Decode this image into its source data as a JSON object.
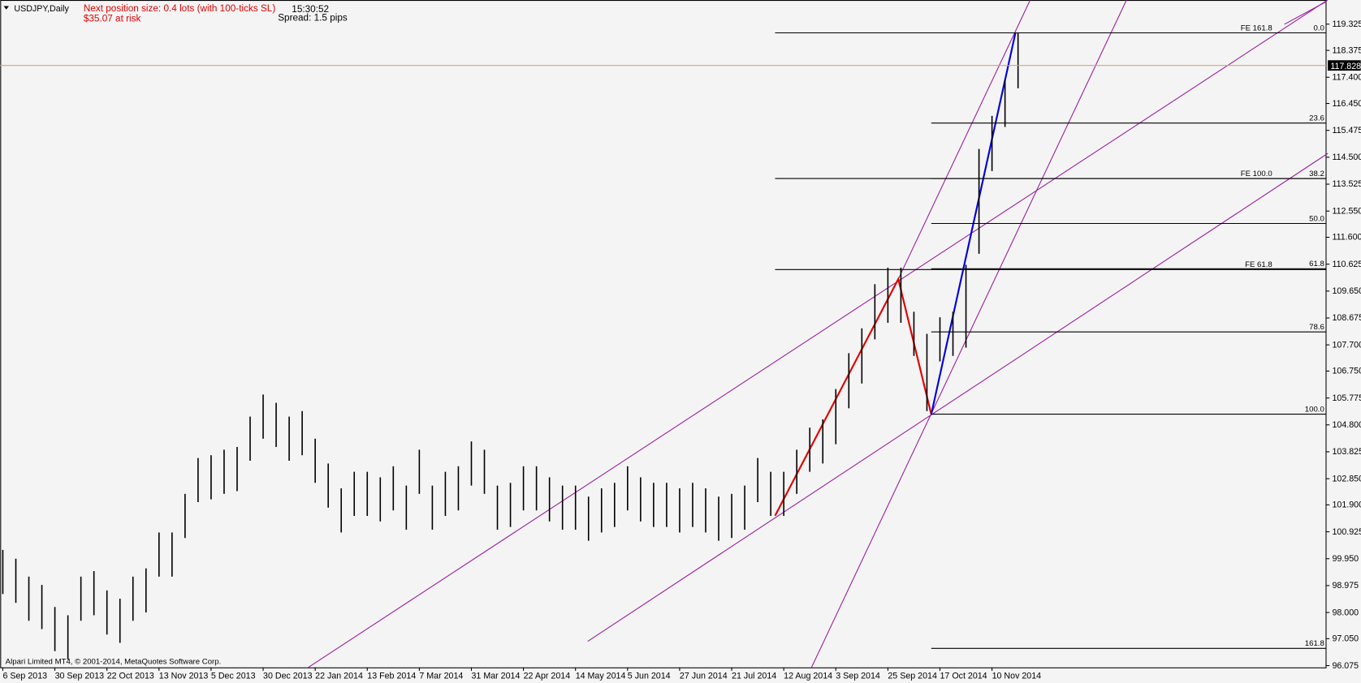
{
  "chart_data": {
    "type": "ohlc",
    "title": "USDJPY,Daily",
    "position_size": "Next position size: 0.4 lots (with 100-ticks SL)",
    "risk": "$35.07 at risk",
    "time": "15:30:52",
    "spread": "Spread: 1.5 pips",
    "copyright": "Alpari Limited MT4, © 2001-2014, MetaQuotes Software Corp.",
    "color": "#000000",
    "categories": [
      "6 Sep 2013",
      null,
      null,
      null,
      "30 Sep 2013",
      null,
      null,
      null,
      "22 Oct 2013",
      null,
      null,
      null,
      "13 Nov 2013",
      null,
      null,
      null,
      "5 Dec 2013",
      null,
      null,
      null,
      "30 Dec 2013",
      null,
      null,
      null,
      "22 Jan 2014",
      null,
      null,
      null,
      "13 Feb 2014",
      null,
      null,
      null,
      "7 Mar 2014",
      null,
      null,
      null,
      "31 Mar 2014",
      null,
      null,
      null,
      "22 Apr 2014",
      null,
      null,
      null,
      "14 May 2014",
      null,
      null,
      null,
      "5 Jun 2014",
      null,
      null,
      null,
      "27 Jun 2014",
      null,
      null,
      null,
      "21 Jul 2014",
      null,
      null,
      null,
      "12 Aug 2014",
      null,
      null,
      null,
      "3 Sep 2014",
      null,
      null,
      null,
      "25 Sep 2014",
      null,
      null,
      null,
      "17 Oct 2014",
      null,
      null,
      null,
      "10 Nov 2014",
      null,
      null
    ],
    "high": [
      100.27,
      99.95,
      99.3,
      99.0,
      98.2,
      97.9,
      99.3,
      99.5,
      98.8,
      98.5,
      99.3,
      99.6,
      100.9,
      100.9,
      102.3,
      103.6,
      103.7,
      103.9,
      104.0,
      105.1,
      105.9,
      105.6,
      105.1,
      105.3,
      104.3,
      103.4,
      102.5,
      103.1,
      103.1,
      102.9,
      103.3,
      102.6,
      103.9,
      102.6,
      103.1,
      103.3,
      104.2,
      103.9,
      102.6,
      102.7,
      103.3,
      103.3,
      102.9,
      102.6,
      102.6,
      102.2,
      102.5,
      102.7,
      103.3,
      102.9,
      102.7,
      102.7,
      102.5,
      102.7,
      102.5,
      102.2,
      102.3,
      102.6,
      103.6,
      103.1,
      103.1,
      103.9,
      104.7,
      105.0,
      106.1,
      107.4,
      108.3,
      109.9,
      110.5,
      110.5,
      108.9,
      108.1,
      108.7,
      108.9,
      110.6,
      114.8,
      116.0,
      117.3,
      119.0
    ],
    "low": [
      98.67,
      98.35,
      97.7,
      97.4,
      96.6,
      96.3,
      97.7,
      97.9,
      97.2,
      96.9,
      97.7,
      98.0,
      99.3,
      99.3,
      100.7,
      102.0,
      102.1,
      102.3,
      102.4,
      103.5,
      104.3,
      104.0,
      103.5,
      103.7,
      102.7,
      101.8,
      100.9,
      101.5,
      101.5,
      101.3,
      101.7,
      101.0,
      102.3,
      101.0,
      101.5,
      101.7,
      102.6,
      102.3,
      101.0,
      101.1,
      101.7,
      101.7,
      101.3,
      101.0,
      101.0,
      100.6,
      100.9,
      101.1,
      101.7,
      101.3,
      101.1,
      101.1,
      100.9,
      101.1,
      100.9,
      100.6,
      100.7,
      101.0,
      102.0,
      101.5,
      101.5,
      102.3,
      103.1,
      103.4,
      104.1,
      105.4,
      106.3,
      107.9,
      108.5,
      108.5,
      107.3,
      105.3,
      107.1,
      107.3,
      107.6,
      111.0,
      114.0,
      115.6,
      117.0
    ],
    "ylim": [
      96.01,
      120.2
    ],
    "yticks": [
      119.325,
      118.375,
      {
        "value": 117.4,
        "label": "117.400"
      },
      {
        "value": 116.45,
        "label": "116.450"
      },
      115.475,
      {
        "value": 114.5,
        "label": "114.500"
      },
      113.525,
      {
        "value": 112.55,
        "label": "112.550"
      },
      {
        "value": 111.6,
        "label": "111.600"
      },
      110.625,
      {
        "value": 109.65,
        "label": "109.650"
      },
      108.675,
      {
        "value": 107.7,
        "label": "107.700"
      },
      {
        "value": 106.75,
        "label": "106.750"
      },
      105.775,
      {
        "value": 104.8,
        "label": "104.800"
      },
      103.825,
      {
        "value": 102.85,
        "label": "102.850"
      },
      {
        "value": 101.9,
        "label": "101.900"
      },
      100.925,
      {
        "value": 99.95,
        "label": "99.950"
      },
      98.975,
      {
        "value": 98,
        "label": "98.000"
      },
      {
        "value": 97.05,
        "label": "97.050"
      },
      96.075
    ],
    "grid": false,
    "current_price": 117.828,
    "fib_retracement": [
      {
        "label": "0.0",
        "value": 119.01
      },
      {
        "label": "23.6",
        "value": 115.74
      },
      {
        "label": "38.2",
        "value": 113.73
      },
      {
        "label": "50.0",
        "value": 112.1
      },
      {
        "label": "61.8",
        "value": 110.46
      },
      {
        "label": "78.6",
        "value": 108.17
      },
      {
        "label": "100.0",
        "value": 105.19
      },
      {
        "label": "161.8",
        "value": 96.7
      }
    ],
    "fib_expansion": [
      {
        "label": "FE 161.8",
        "value": 119.01
      },
      {
        "label": "FE 100.0",
        "value": 113.73
      },
      {
        "label": "FE 61.8",
        "value": 110.43
      }
    ]
  }
}
